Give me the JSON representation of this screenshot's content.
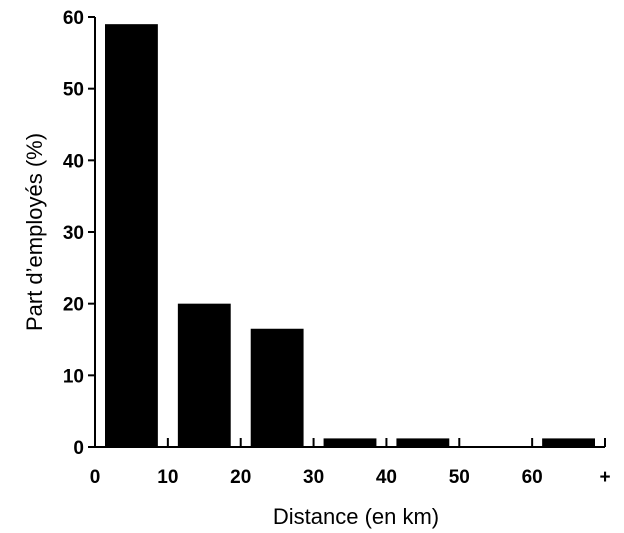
{
  "chart_data": {
    "type": "bar",
    "xlabel": "Distance (en km)",
    "ylabel": "Part d’employés (%)",
    "ylim": [
      0,
      60
    ],
    "yticks": [
      0,
      10,
      20,
      30,
      40,
      50,
      60
    ],
    "x_tick_labels": [
      "0",
      "10",
      "20",
      "30",
      "40",
      "50",
      "60",
      "+"
    ],
    "categories": [
      "0-10",
      "10-20",
      "20-30",
      "30-40",
      "40-50",
      "50-60",
      "60+"
    ],
    "values": [
      59,
      20,
      16.5,
      1.2,
      1.2,
      0,
      1.2
    ],
    "grid": false,
    "legend": "none",
    "bar_color": "#000000"
  }
}
